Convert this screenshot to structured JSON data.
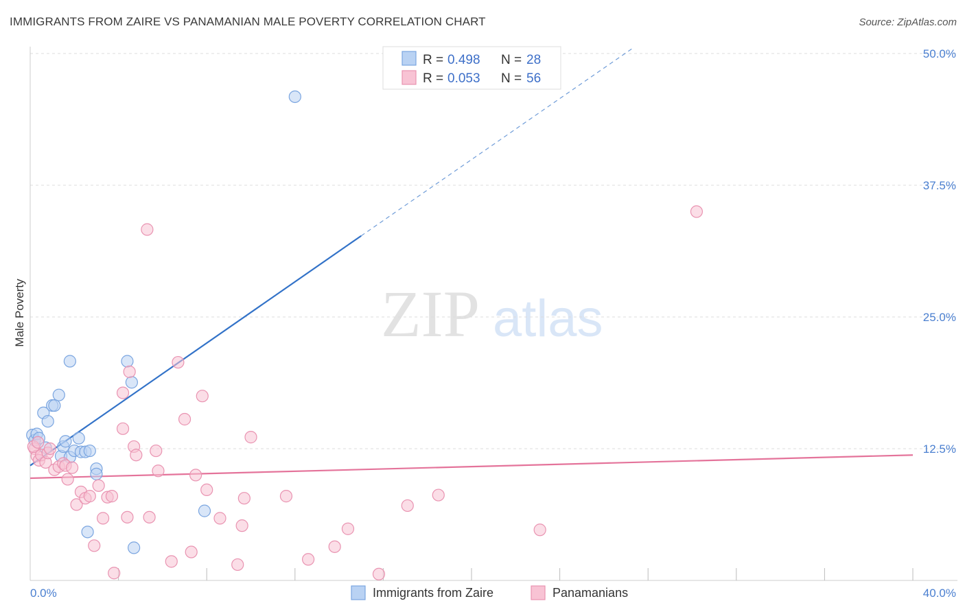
{
  "header": {
    "title": "IMMIGRANTS FROM ZAIRE VS PANAMANIAN MALE POVERTY CORRELATION CHART",
    "source": "Source: ZipAtlas.com"
  },
  "watermark": {
    "zip": "ZIP",
    "atlas": "atlas"
  },
  "colors": {
    "blue_fill": "#b9d2f3",
    "blue_stroke": "#7aa5e0",
    "blue_line": "#3272c8",
    "pink_fill": "#f8c3d4",
    "pink_stroke": "#e993b1",
    "pink_line": "#e4739a",
    "axis_label": "#4a7fd0",
    "grid": "#dcdcdc"
  },
  "stats_legend": [
    {
      "series": "Immigrants from Zaire",
      "r_label": "R =",
      "r_value": "0.498",
      "n_label": "N =",
      "n_value": "28",
      "color": "blue"
    },
    {
      "series": "Panamanians",
      "r_label": "R =",
      "r_value": "0.053",
      "n_label": "N =",
      "n_value": "56",
      "color": "pink"
    }
  ],
  "chart_data": {
    "type": "scatter",
    "title": "IMMIGRANTS FROM ZAIRE VS PANAMANIAN MALE POVERTY CORRELATION CHART",
    "xlabel": "",
    "ylabel": "Male Poverty",
    "xlim": [
      0,
      40
    ],
    "ylim": [
      0,
      50
    ],
    "x_tick_labels": [
      {
        "value": 0,
        "label": "0.0%"
      },
      {
        "value": 40,
        "label": "40.0%"
      }
    ],
    "y_tick_labels": [
      {
        "value": 12.5,
        "label": "12.5%"
      },
      {
        "value": 25,
        "label": "25.0%"
      },
      {
        "value": 37.5,
        "label": "37.5%"
      },
      {
        "value": 50,
        "label": "50.0%"
      }
    ],
    "x_minor_ticks": [
      4,
      8,
      12,
      16,
      20,
      24,
      28,
      32,
      36,
      40
    ],
    "series": [
      {
        "name": "Immigrants from Zaire",
        "color": "blue",
        "points": [
          [
            0.1,
            13.8
          ],
          [
            0.2,
            13.3
          ],
          [
            0.3,
            13.9
          ],
          [
            0.4,
            13.5
          ],
          [
            0.6,
            15.9
          ],
          [
            0.7,
            12.6
          ],
          [
            0.8,
            15.1
          ],
          [
            1.0,
            16.6
          ],
          [
            1.1,
            16.6
          ],
          [
            1.3,
            17.6
          ],
          [
            1.4,
            11.8
          ],
          [
            1.5,
            12.7
          ],
          [
            1.6,
            13.2
          ],
          [
            1.8,
            11.7
          ],
          [
            1.8,
            20.8
          ],
          [
            2.0,
            12.3
          ],
          [
            2.2,
            13.5
          ],
          [
            2.3,
            12.2
          ],
          [
            2.5,
            12.2
          ],
          [
            2.6,
            4.6
          ],
          [
            2.7,
            12.3
          ],
          [
            3.0,
            10.6
          ],
          [
            3.0,
            10.1
          ],
          [
            4.4,
            20.8
          ],
          [
            4.6,
            18.8
          ],
          [
            4.7,
            3.1
          ],
          [
            7.9,
            6.6
          ],
          [
            12.0,
            45.9
          ]
        ],
        "trend": {
          "x0": 0.0,
          "y0": 10.9,
          "x1": 15.0,
          "y1": 32.7,
          "dashed_to_x": 27.3,
          "dashed_to_y": 50.5
        }
      },
      {
        "name": "Panamanians",
        "color": "pink",
        "points": [
          [
            0.2,
            12.5
          ],
          [
            0.3,
            11.8
          ],
          [
            0.4,
            11.4
          ],
          [
            0.5,
            11.9
          ],
          [
            0.7,
            11.2
          ],
          [
            0.8,
            12.1
          ],
          [
            0.9,
            12.5
          ],
          [
            1.1,
            10.5
          ],
          [
            1.3,
            10.8
          ],
          [
            1.5,
            11.1
          ],
          [
            1.6,
            10.9
          ],
          [
            1.7,
            9.6
          ],
          [
            1.9,
            10.7
          ],
          [
            2.1,
            7.2
          ],
          [
            2.3,
            8.4
          ],
          [
            2.5,
            7.8
          ],
          [
            2.7,
            8.0
          ],
          [
            2.9,
            3.3
          ],
          [
            3.1,
            9.0
          ],
          [
            3.3,
            5.9
          ],
          [
            3.5,
            7.9
          ],
          [
            3.7,
            8.0
          ],
          [
            3.8,
            0.7
          ],
          [
            4.2,
            14.4
          ],
          [
            4.2,
            17.8
          ],
          [
            4.4,
            6.0
          ],
          [
            4.5,
            19.8
          ],
          [
            4.7,
            12.7
          ],
          [
            4.8,
            11.9
          ],
          [
            5.3,
            33.3
          ],
          [
            5.4,
            6.0
          ],
          [
            5.7,
            12.3
          ],
          [
            5.8,
            10.4
          ],
          [
            6.4,
            1.8
          ],
          [
            6.7,
            20.7
          ],
          [
            7.0,
            15.3
          ],
          [
            7.3,
            2.7
          ],
          [
            7.5,
            10.0
          ],
          [
            7.8,
            17.5
          ],
          [
            8.0,
            8.6
          ],
          [
            8.6,
            5.9
          ],
          [
            9.4,
            1.5
          ],
          [
            9.6,
            5.2
          ],
          [
            9.7,
            7.8
          ],
          [
            10.0,
            13.6
          ],
          [
            11.6,
            8.0
          ],
          [
            12.6,
            2.0
          ],
          [
            13.8,
            3.2
          ],
          [
            14.4,
            4.9
          ],
          [
            15.8,
            0.6
          ],
          [
            17.1,
            7.1
          ],
          [
            18.5,
            8.1
          ],
          [
            23.1,
            4.8
          ],
          [
            30.2,
            35.0
          ],
          [
            0.15,
            12.7
          ],
          [
            0.35,
            13.1
          ]
        ],
        "trend": {
          "x0": 0.0,
          "y0": 9.7,
          "x1": 40.0,
          "y1": 11.9
        }
      }
    ]
  },
  "bottom_legend": [
    {
      "label": "Immigrants from Zaire",
      "color": "blue"
    },
    {
      "label": "Panamanians",
      "color": "pink"
    }
  ]
}
